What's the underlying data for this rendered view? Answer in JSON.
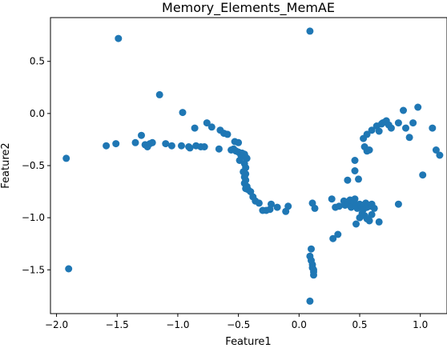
{
  "chart_data": {
    "type": "scatter",
    "title": "Memory_Elements_MemAE",
    "xlabel": "Feature1",
    "ylabel": "Feature2",
    "xlim": [
      -2.05,
      1.22
    ],
    "ylim": [
      -1.92,
      0.92
    ],
    "xticks": [
      -2.0,
      -1.5,
      -1.0,
      -0.5,
      0.0,
      0.5,
      1.0
    ],
    "xtick_labels": [
      "−2.0",
      "−1.5",
      "−1.0",
      "−0.5",
      "0.0",
      "0.5",
      "1.0"
    ],
    "yticks": [
      0.5,
      0.0,
      -0.5,
      -1.0,
      -1.5
    ],
    "ytick_labels": [
      "0.5",
      "0.0",
      "−0.5",
      "−1.0",
      "−1.5"
    ],
    "grid": false,
    "marker_color": "#1f77b4",
    "points": [
      [
        -1.49,
        0.72
      ],
      [
        0.09,
        0.79
      ],
      [
        -1.15,
        0.18
      ],
      [
        -0.96,
        0.01
      ],
      [
        -1.92,
        -0.43
      ],
      [
        -1.9,
        -1.49
      ],
      [
        -1.59,
        -0.31
      ],
      [
        -1.51,
        -0.29
      ],
      [
        -1.35,
        -0.28
      ],
      [
        -1.3,
        -0.21
      ],
      [
        -1.27,
        -0.3
      ],
      [
        -1.25,
        -0.32
      ],
      [
        -1.23,
        -0.29
      ],
      [
        -1.21,
        -0.28
      ],
      [
        -1.1,
        -0.29
      ],
      [
        -1.05,
        -0.31
      ],
      [
        -0.97,
        -0.31
      ],
      [
        -0.91,
        -0.32
      ],
      [
        -0.9,
        -0.33
      ],
      [
        -0.85,
        -0.31
      ],
      [
        -0.81,
        -0.32
      ],
      [
        -0.78,
        -0.32
      ],
      [
        -0.76,
        -0.09
      ],
      [
        -0.72,
        -0.13
      ],
      [
        -0.65,
        -0.16
      ],
      [
        -0.62,
        -0.19
      ],
      [
        -0.59,
        -0.2
      ],
      [
        -0.53,
        -0.27
      ],
      [
        -0.5,
        -0.28
      ],
      [
        -0.86,
        -0.14
      ],
      [
        -0.66,
        -0.34
      ],
      [
        -0.56,
        -0.35
      ],
      [
        -0.54,
        -0.34
      ],
      [
        -0.52,
        -0.36
      ],
      [
        -0.5,
        -0.37
      ],
      [
        -0.48,
        -0.4
      ],
      [
        -0.47,
        -0.38
      ],
      [
        -0.45,
        -0.39
      ],
      [
        -0.44,
        -0.42
      ],
      [
        -0.43,
        -0.43
      ],
      [
        -0.49,
        -0.45
      ],
      [
        -0.45,
        -0.48
      ],
      [
        -0.44,
        -0.52
      ],
      [
        -0.46,
        -0.56
      ],
      [
        -0.44,
        -0.58
      ],
      [
        -0.45,
        -0.61
      ],
      [
        -0.44,
        -0.64
      ],
      [
        -0.45,
        -0.67
      ],
      [
        -0.43,
        -0.7
      ],
      [
        -0.44,
        -0.72
      ],
      [
        -0.42,
        -0.73
      ],
      [
        -0.4,
        -0.75
      ],
      [
        -0.38,
        -0.8
      ],
      [
        -0.36,
        -0.84
      ],
      [
        -0.33,
        -0.86
      ],
      [
        -0.3,
        -0.93
      ],
      [
        -0.27,
        -0.93
      ],
      [
        -0.24,
        -0.92
      ],
      [
        -0.23,
        -0.87
      ],
      [
        -0.18,
        -0.9
      ],
      [
        -0.11,
        -0.94
      ],
      [
        -0.09,
        -0.89
      ],
      [
        0.09,
        -1.8
      ],
      [
        0.09,
        -1.37
      ],
      [
        0.1,
        -1.3
      ],
      [
        0.1,
        -1.41
      ],
      [
        0.11,
        -1.45
      ],
      [
        0.11,
        -1.48
      ],
      [
        0.12,
        -1.5
      ],
      [
        0.12,
        -1.52
      ],
      [
        0.12,
        -1.55
      ],
      [
        0.11,
        -0.86
      ],
      [
        0.13,
        -0.91
      ],
      [
        0.27,
        -0.82
      ],
      [
        0.28,
        -1.2
      ],
      [
        0.3,
        -0.9
      ],
      [
        0.32,
        -1.16
      ],
      [
        0.33,
        -0.89
      ],
      [
        0.37,
        -0.84
      ],
      [
        0.38,
        -0.88
      ],
      [
        0.4,
        -0.86
      ],
      [
        0.42,
        -0.83
      ],
      [
        0.43,
        -0.9
      ],
      [
        0.45,
        -0.85
      ],
      [
        0.46,
        -0.82
      ],
      [
        0.47,
        -0.89
      ],
      [
        0.48,
        -0.91
      ],
      [
        0.5,
        -0.87
      ],
      [
        0.51,
        -0.88
      ],
      [
        0.52,
        -0.9
      ],
      [
        0.53,
        -0.92
      ],
      [
        0.55,
        -0.86
      ],
      [
        0.56,
        -0.9
      ],
      [
        0.57,
        -0.88
      ],
      [
        0.58,
        -0.89
      ],
      [
        0.6,
        -0.87
      ],
      [
        0.47,
        -1.06
      ],
      [
        0.5,
        -1.0
      ],
      [
        0.52,
        -0.96
      ],
      [
        0.54,
        -0.98
      ],
      [
        0.56,
        -1.01
      ],
      [
        0.58,
        -1.03
      ],
      [
        0.6,
        -0.97
      ],
      [
        0.62,
        -0.91
      ],
      [
        0.66,
        -1.04
      ],
      [
        0.82,
        -0.87
      ],
      [
        0.4,
        -0.64
      ],
      [
        0.46,
        -0.55
      ],
      [
        0.46,
        -0.45
      ],
      [
        0.49,
        -0.63
      ],
      [
        0.53,
        -0.24
      ],
      [
        0.54,
        -0.32
      ],
      [
        0.56,
        -0.36
      ],
      [
        0.56,
        -0.2
      ],
      [
        0.58,
        -0.35
      ],
      [
        0.6,
        -0.16
      ],
      [
        0.64,
        -0.12
      ],
      [
        0.66,
        -0.17
      ],
      [
        0.68,
        -0.1
      ],
      [
        0.69,
        -0.09
      ],
      [
        0.71,
        -0.08
      ],
      [
        0.72,
        -0.07
      ],
      [
        0.74,
        -0.11
      ],
      [
        0.76,
        -0.14
      ],
      [
        0.82,
        -0.09
      ],
      [
        0.86,
        0.03
      ],
      [
        0.88,
        -0.14
      ],
      [
        0.91,
        -0.23
      ],
      [
        0.94,
        -0.09
      ],
      [
        0.98,
        0.06
      ],
      [
        1.02,
        -0.59
      ],
      [
        1.1,
        -0.14
      ],
      [
        1.13,
        -0.35
      ],
      [
        1.16,
        -0.4
      ]
    ]
  }
}
